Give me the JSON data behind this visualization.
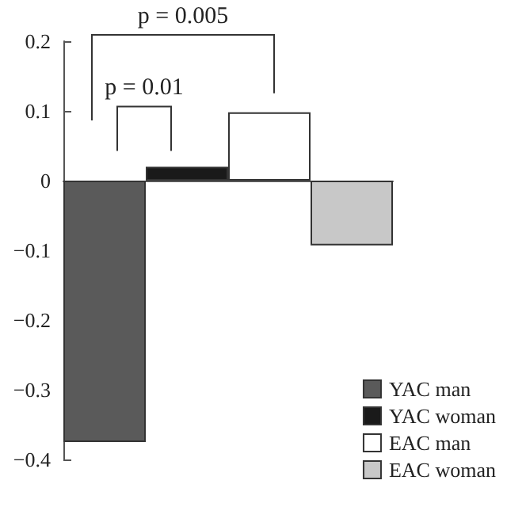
{
  "chart_data": {
    "type": "bar",
    "categories": [
      null,
      null,
      null,
      null
    ],
    "series": [
      {
        "name": "YAC man",
        "color": "#5a5a5a",
        "values": [
          -0.375,
          null,
          null,
          null
        ]
      },
      {
        "name": "YAC woman",
        "color": "#1a1a1a",
        "values": [
          null,
          0.02,
          null,
          null
        ]
      },
      {
        "name": "EAC man",
        "color": "#ffffff",
        "values": [
          null,
          null,
          0.098,
          null
        ]
      },
      {
        "name": "EAC woman",
        "color": "#c8c8c8",
        "values": [
          null,
          null,
          null,
          -0.093
        ]
      }
    ],
    "ylim": [
      -0.4,
      0.2
    ],
    "yticks": [
      {
        "value": -0.4,
        "label": "−0.4"
      },
      {
        "value": -0.3,
        "label": "−0.3"
      },
      {
        "value": -0.2,
        "label": "−0.2"
      },
      {
        "value": -0.1,
        "label": "−0.1"
      },
      0,
      0.1,
      0.2
    ],
    "annotations": [
      "p = 0.01",
      "p = 0.005"
    ],
    "legend": "bottom right"
  }
}
